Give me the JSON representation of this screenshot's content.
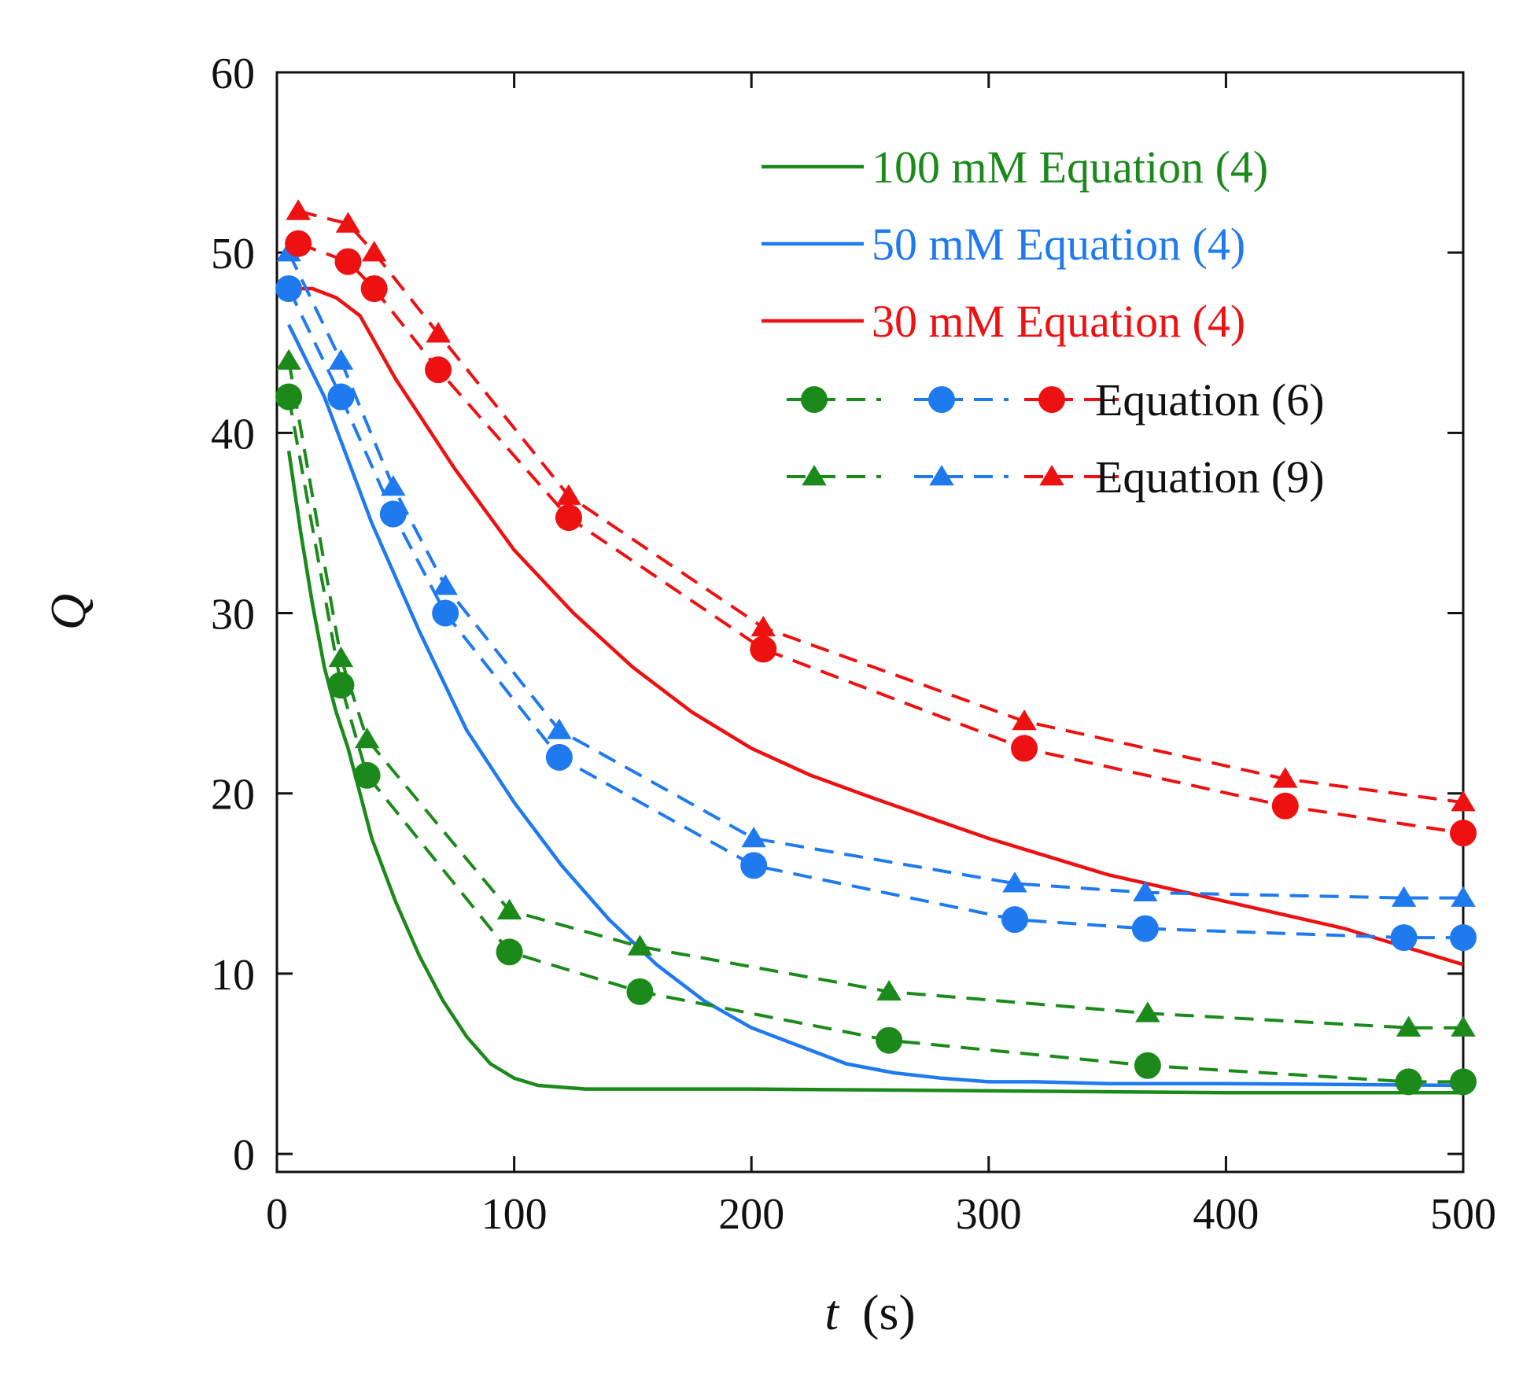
{
  "chart_data": {
    "type": "line",
    "title": "",
    "xlabel_var": "t",
    "xlabel_unit": "(s)",
    "ylabel": "Q",
    "xlim": [
      0,
      500
    ],
    "ylim": [
      -1,
      60
    ],
    "xticks": [
      0,
      100,
      200,
      300,
      400,
      500
    ],
    "yticks": [
      0,
      10,
      20,
      30,
      40,
      50,
      60
    ],
    "grid": false,
    "legend_position": "top-right",
    "colors": {
      "100mM": "#1b8a1b",
      "50mM": "#1f7af0",
      "30mM": "#ee1111"
    },
    "legend": {
      "eq4_100": "100 mM Equation (4)",
      "eq4_50": "50 mM Equation (4)",
      "eq4_30": "30 mM Equation (4)",
      "eq6": "Equation (6)",
      "eq9": "Equation (9)"
    },
    "series": [
      {
        "name": "100 mM Equation (4)",
        "group": "100mM",
        "kind": "solid",
        "x": [
          5,
          10,
          15,
          20,
          25,
          30,
          35,
          40,
          50,
          60,
          70,
          80,
          90,
          100,
          110,
          130,
          200,
          300,
          400,
          500
        ],
        "y": [
          39,
          34.5,
          30.5,
          27,
          24.5,
          22.5,
          20,
          17.5,
          14,
          11,
          8.5,
          6.5,
          5,
          4.2,
          3.8,
          3.6,
          3.6,
          3.5,
          3.4,
          3.4
        ]
      },
      {
        "name": "50 mM Equation (4)",
        "group": "50mM",
        "kind": "solid",
        "x": [
          5,
          20,
          40,
          60,
          80,
          100,
          120,
          140,
          160,
          180,
          200,
          220,
          240,
          260,
          280,
          300,
          320,
          350,
          400,
          500
        ],
        "y": [
          46,
          42,
          35,
          29,
          23.5,
          19.5,
          16,
          13,
          10.5,
          8.5,
          7,
          6,
          5,
          4.5,
          4.2,
          4,
          4,
          3.9,
          3.9,
          3.8
        ]
      },
      {
        "name": "30 mM Equation (4)",
        "group": "30mM",
        "kind": "solid",
        "x": [
          5,
          15,
          25,
          35,
          50,
          75,
          100,
          125,
          150,
          175,
          200,
          225,
          250,
          300,
          350,
          400,
          450,
          500
        ],
        "y": [
          48,
          48,
          47.5,
          46.5,
          43,
          38,
          33.5,
          30,
          27,
          24.5,
          22.5,
          21,
          19.8,
          17.5,
          15.5,
          14,
          12.5,
          10.5
        ]
      },
      {
        "name": "100 mM Equation (6)",
        "group": "100mM",
        "kind": "circle",
        "x": [
          5,
          27,
          38,
          98,
          153,
          258,
          367,
          477,
          500
        ],
        "y": [
          42,
          26,
          21,
          11.2,
          9,
          6.3,
          4.9,
          4,
          4
        ]
      },
      {
        "name": "100 mM Equation (9)",
        "group": "100mM",
        "kind": "triangle",
        "x": [
          5,
          27,
          38,
          98,
          153,
          258,
          367,
          477,
          500
        ],
        "y": [
          44,
          27.5,
          23,
          13.5,
          11.5,
          9,
          7.8,
          7,
          7
        ]
      },
      {
        "name": "50 mM Equation (6)",
        "group": "50mM",
        "kind": "circle",
        "x": [
          5,
          27,
          49,
          71,
          119,
          201,
          311,
          366,
          475,
          500
        ],
        "y": [
          48,
          42,
          35.5,
          30,
          22,
          16,
          13,
          12.5,
          12,
          12
        ]
      },
      {
        "name": "50 mM Equation (9)",
        "group": "50mM",
        "kind": "triangle",
        "x": [
          5,
          27,
          49,
          71,
          119,
          201,
          311,
          366,
          475,
          500
        ],
        "y": [
          50,
          44,
          37,
          31.5,
          23.5,
          17.5,
          15,
          14.5,
          14.2,
          14.2
        ]
      },
      {
        "name": "30 mM Equation (6)",
        "group": "30mM",
        "kind": "circle",
        "x": [
          9,
          30,
          41,
          68,
          123,
          205,
          315,
          425,
          500
        ],
        "y": [
          50.5,
          49.5,
          48,
          43.5,
          35.3,
          28,
          22.5,
          19.3,
          17.8
        ]
      },
      {
        "name": "30 mM Equation (9)",
        "group": "30mM",
        "kind": "triangle",
        "x": [
          9,
          30,
          41,
          68,
          123,
          205,
          315,
          425,
          500
        ],
        "y": [
          52.3,
          51.6,
          50,
          45.5,
          36.5,
          29.2,
          24,
          20.8,
          19.5
        ]
      }
    ]
  }
}
